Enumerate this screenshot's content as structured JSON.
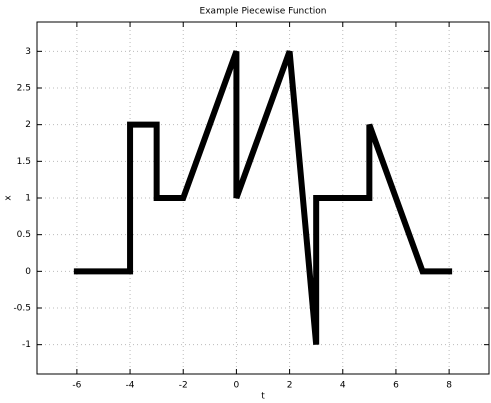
{
  "chart_data": {
    "type": "line",
    "title": "Example Piecewise Function",
    "x_label": "t",
    "y_label": "x",
    "series": [
      {
        "color": "#000000",
        "x": [
          -6,
          -4,
          -4,
          -3,
          -3,
          -2,
          0,
          0,
          2,
          3,
          3,
          5,
          5,
          7,
          8
        ],
        "values": [
          0,
          0,
          2,
          2,
          1,
          1,
          3,
          1,
          3,
          -1,
          1,
          1,
          2,
          0,
          0
        ]
      }
    ],
    "xlim": [
      -7.5,
      9.5
    ],
    "xticks": [
      -6,
      -4,
      -2,
      0,
      2,
      4,
      6,
      8
    ],
    "ylim": [
      -1.4,
      3.4
    ],
    "yticks": [
      -1,
      -0.5,
      0,
      0.5,
      1,
      1.5,
      2,
      2.5,
      3
    ],
    "grid": true
  }
}
